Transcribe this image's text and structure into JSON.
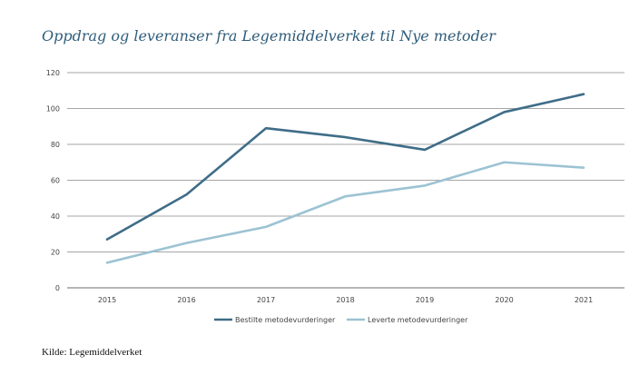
{
  "chart_data": {
    "type": "line",
    "title": "Oppdrag og leveranser fra Legemiddelverket til Nye metoder",
    "xlabel": "",
    "ylabel": "",
    "categories": [
      "2015",
      "2016",
      "2017",
      "2018",
      "2019",
      "2020",
      "2021"
    ],
    "ylim": [
      0,
      120
    ],
    "yticks": [
      0,
      20,
      40,
      60,
      80,
      100,
      120
    ],
    "grid": true,
    "legend_position": "bottom",
    "series": [
      {
        "name": "Bestilte metodevurderinger",
        "color": "#3f6d88",
        "values": [
          27,
          52,
          89,
          84,
          77,
          98,
          108
        ]
      },
      {
        "name": "Leverte metodevurderinger",
        "color": "#9cc3d3",
        "values": [
          14,
          25,
          34,
          51,
          57,
          70,
          67
        ]
      }
    ]
  },
  "source_note": "Kilde: Legemiddelverket"
}
